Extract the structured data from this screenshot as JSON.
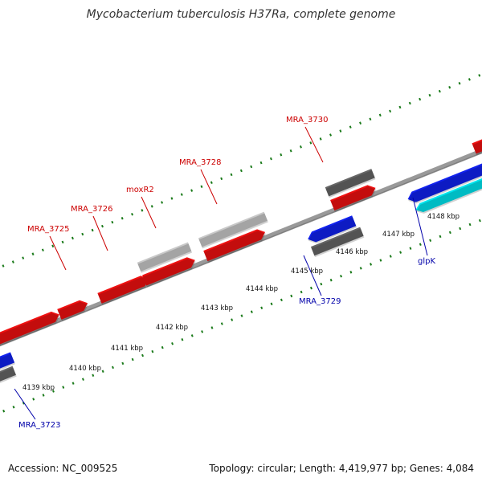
{
  "title": "Mycobacterium tuberculosis H37Ra, complete genome",
  "footer": {
    "accession": "Accession: NC_009525",
    "topology": "Topology: circular; Length: 4,419,977 bp; Genes: 4,084"
  },
  "colors": {
    "background": "#ffffff",
    "backbone": "#888888",
    "tick_green": "#1a7a1a",
    "forward_gene": "#ee1111",
    "reverse_gene": "#1122ee",
    "highlight_gene": "#00e5ee",
    "pseudo_gene_dark": "#666666",
    "pseudo_gene_light": "#c8c8c8",
    "forward_label": "#cc0000",
    "reverse_label": "#0000aa"
  },
  "genome_map": {
    "scale_labels": [
      "4139 kbp",
      "4140 kbp",
      "4141 kbp",
      "4142 kbp",
      "4143 kbp",
      "4144 kbp",
      "4145 kbp",
      "4146 kbp",
      "4147 kbp",
      "4148 kbp"
    ],
    "forward_labels": [
      "MRA_3725",
      "MRA_3726",
      "moxR2",
      "MRA_3728",
      "MRA_3730"
    ],
    "reverse_labels": [
      "MRA_3723",
      "MRA_3729",
      "glpK"
    ]
  }
}
